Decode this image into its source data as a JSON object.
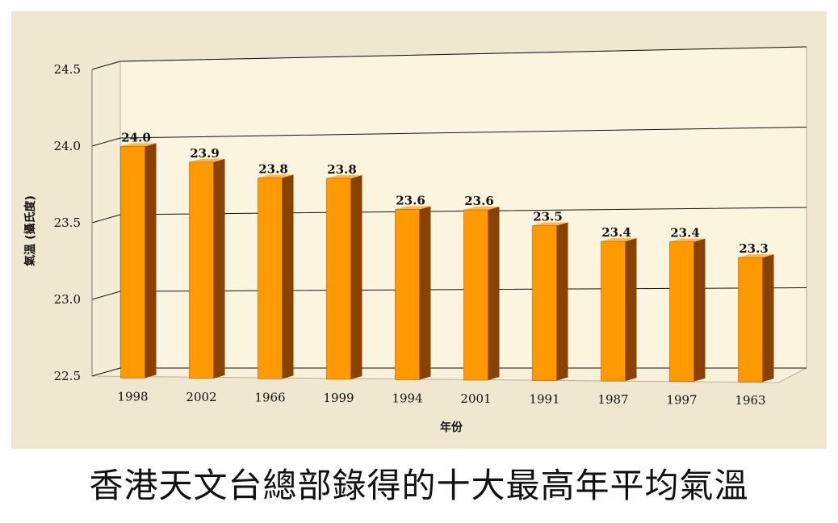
{
  "caption": "香港天文台總部錄得的十大最高年平均氣溫",
  "colors": {
    "panel_bg": "#efe7cf",
    "plot_bg": "#fbf5df",
    "bar_front": "#ff9900",
    "bar_side": "#8a4200",
    "bar_top": "#ffb84d"
  },
  "chart_data": {
    "type": "bar",
    "style": "3d",
    "xlabel": "年份",
    "ylabel": "氣溫 (攝氏度)",
    "ylim": [
      22.5,
      24.5
    ],
    "yticks": [
      "22.5",
      "23.0",
      "23.5",
      "24.0",
      "24.5"
    ],
    "grid": true,
    "categories": [
      "1998",
      "2002",
      "1966",
      "1999",
      "1994",
      "2001",
      "1991",
      "1987",
      "1997",
      "1963"
    ],
    "values": [
      24.0,
      23.9,
      23.8,
      23.8,
      23.6,
      23.6,
      23.5,
      23.4,
      23.4,
      23.3
    ],
    "data_labels": [
      "24.0",
      "23.9",
      "23.8",
      "23.8",
      "23.6",
      "23.6",
      "23.5",
      "23.4",
      "23.4",
      "23.3"
    ]
  }
}
